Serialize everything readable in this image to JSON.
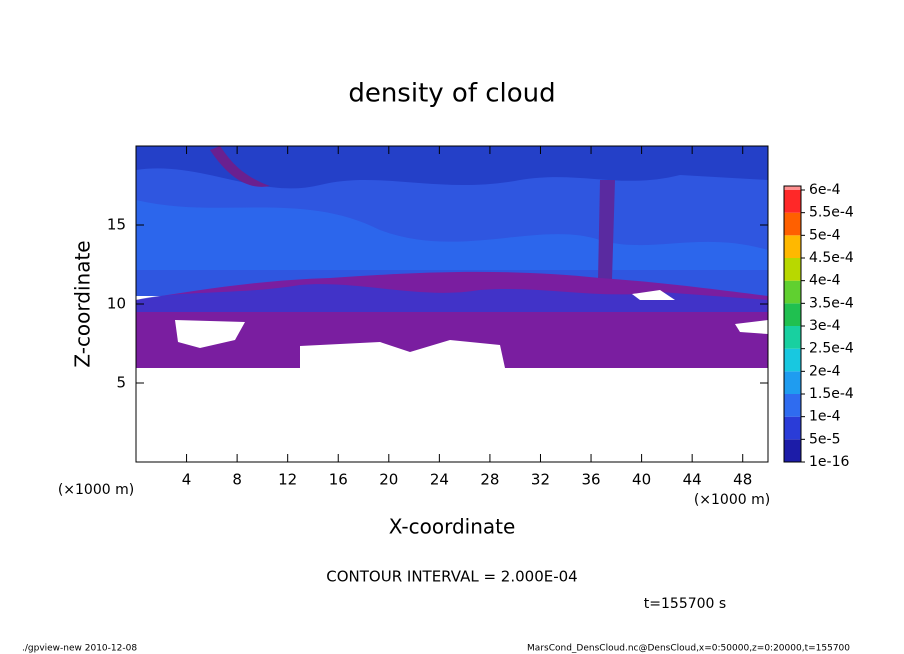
{
  "chart_data": {
    "type": "contour",
    "title": "density of cloud",
    "xlabel": "X-coordinate",
    "ylabel": "Z-coordinate",
    "xunit": "(×1000 m)",
    "yunit": "(×1000 m)",
    "xlim": [
      0,
      50
    ],
    "ylim": [
      0,
      20
    ],
    "xticks": [
      4,
      8,
      12,
      16,
      20,
      24,
      28,
      32,
      36,
      40,
      44,
      48
    ],
    "yticks": [
      5,
      10,
      15
    ],
    "colorbar": {
      "levels": [
        {
          "value": 1e-16,
          "label": "1e-16"
        },
        {
          "value": 5e-05,
          "label": "5e-5"
        },
        {
          "value": 0.0001,
          "label": "1e-4"
        },
        {
          "value": 0.00015,
          "label": "1.5e-4"
        },
        {
          "value": 0.0002,
          "label": "2e-4"
        },
        {
          "value": 0.00025,
          "label": "2.5e-4"
        },
        {
          "value": 0.0003,
          "label": "3e-4"
        },
        {
          "value": 0.00035,
          "label": "3.5e-4"
        },
        {
          "value": 0.0004,
          "label": "4e-4"
        },
        {
          "value": 0.00045,
          "label": "4.5e-4"
        },
        {
          "value": 0.0005,
          "label": "5e-4"
        },
        {
          "value": 0.00055,
          "label": "5.5e-4"
        },
        {
          "value": 0.0006,
          "label": "6e-4"
        }
      ],
      "colors": [
        "#1c1ca8",
        "#2a3cd8",
        "#2f6cf0",
        "#1f9cf0",
        "#18c8e0",
        "#18d0a0",
        "#20c050",
        "#60d030",
        "#b8d800",
        "#ffb800",
        "#ff6000",
        "#ff2828"
      ],
      "top_color": "#ff9090",
      "bottom_color": "#7a1ea0"
    },
    "contour_interval": "CONTOUR INTERVAL = 2.000E-04",
    "time_label": "t=155700 s",
    "footer_left": "./gpview-new  2010-12-08",
    "footer_right": "MarsCond_DensCloud.nc@DensCloud,x=0:50000,z=0:20000,t=155700"
  }
}
